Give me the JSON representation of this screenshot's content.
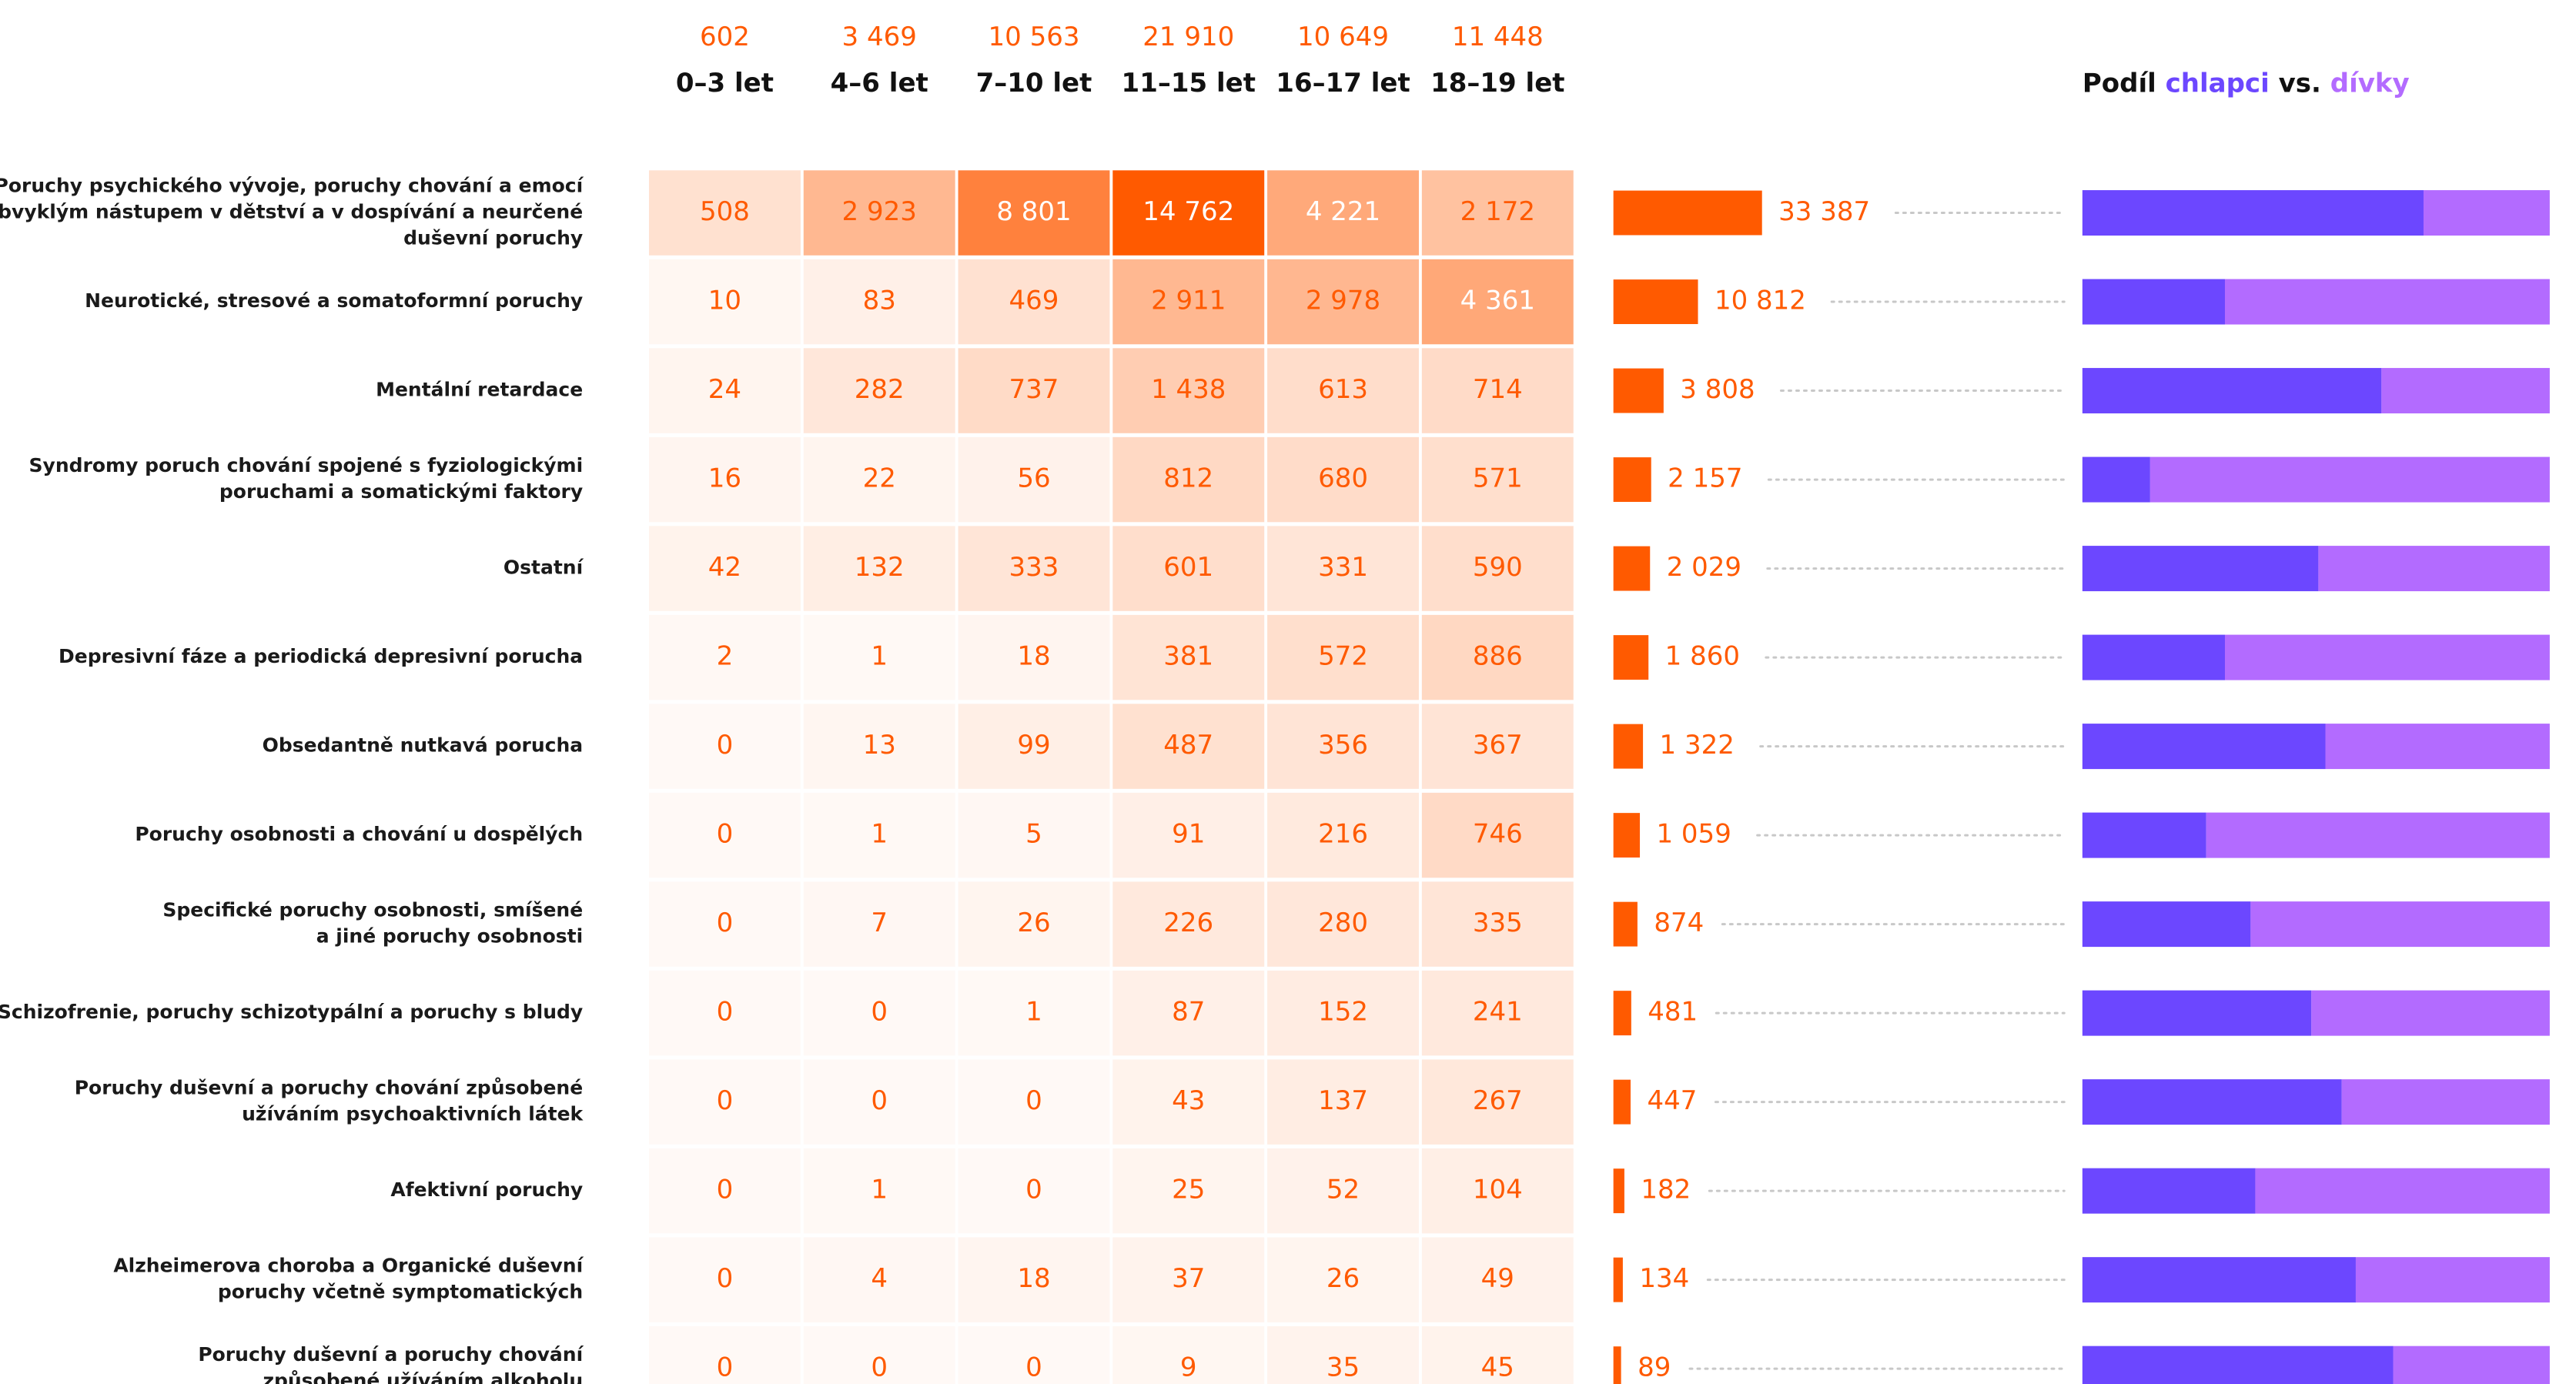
{
  "colors": {
    "accent": "#ff5a00",
    "boys": "#6c47ff",
    "girls": "#b36bff",
    "dots": "#c8c8c8",
    "label_text": "#1a1a1a",
    "header_text": "#111111"
  },
  "share_title": {
    "prefix": "Podíl",
    "boys": "chlapci",
    "vs": "vs.",
    "girls": "dívky"
  },
  "chart_data": {
    "type": "heatmap",
    "columns": [
      {
        "label": "0–3 let",
        "total": "602"
      },
      {
        "label": "4–6 let",
        "total": "3 469"
      },
      {
        "label": "7–10 let",
        "total": "10 563"
      },
      {
        "label": "11–15 let",
        "total": "21 910"
      },
      {
        "label": "16–17 let",
        "total": "10 649"
      },
      {
        "label": "18–19 let",
        "total": "11 448"
      }
    ],
    "rows": [
      {
        "lines": [
          "Poruchy psychického vývoje, poruchy chování a emocí",
          "s obvyklým nástupem v dětství a v dospívání a neurčené",
          "duševní poruchy"
        ],
        "cells": [
          508,
          2923,
          8801,
          14762,
          4221,
          2172
        ],
        "cell_labels": [
          "508",
          "2 923",
          "8 801",
          "14 762",
          "4 221",
          "2 172"
        ],
        "total": 33387,
        "total_label": "33 387",
        "boys_share": 0.73
      },
      {
        "lines": [
          "Neurotické, stresové a somatoformní poruchy"
        ],
        "cells": [
          10,
          83,
          469,
          2911,
          2978,
          4361
        ],
        "cell_labels": [
          "10",
          "83",
          "469",
          "2 911",
          "2 978",
          "4 361"
        ],
        "total": 10812,
        "total_label": "10 812",
        "boys_share": 0.305
      },
      {
        "lines": [
          "Mentální retardace"
        ],
        "cells": [
          24,
          282,
          737,
          1438,
          613,
          714
        ],
        "cell_labels": [
          "24",
          "282",
          "737",
          "1 438",
          "613",
          "714"
        ],
        "total": 3808,
        "total_label": "3 808",
        "boys_share": 0.64
      },
      {
        "lines": [
          "Syndromy poruch chování spojené s fyziologickými",
          "poruchami a somatickými faktory"
        ],
        "cells": [
          16,
          22,
          56,
          812,
          680,
          571
        ],
        "cell_labels": [
          "16",
          "22",
          "56",
          "812",
          "680",
          "571"
        ],
        "total": 2157,
        "total_label": "2 157",
        "boys_share": 0.145
      },
      {
        "lines": [
          "Ostatní"
        ],
        "cells": [
          42,
          132,
          333,
          601,
          331,
          590
        ],
        "cell_labels": [
          "42",
          "132",
          "333",
          "601",
          "331",
          "590"
        ],
        "total": 2029,
        "total_label": "2 029",
        "boys_share": 0.505
      },
      {
        "lines": [
          "Depresivní fáze a periodická depresivní porucha"
        ],
        "cells": [
          2,
          1,
          18,
          381,
          572,
          886
        ],
        "cell_labels": [
          "2",
          "1",
          "18",
          "381",
          "572",
          "886"
        ],
        "total": 1860,
        "total_label": "1 860",
        "boys_share": 0.305
      },
      {
        "lines": [
          "Obsedantně nutkavá porucha"
        ],
        "cells": [
          0,
          13,
          99,
          487,
          356,
          367
        ],
        "cell_labels": [
          "0",
          "13",
          "99",
          "487",
          "356",
          "367"
        ],
        "total": 1322,
        "total_label": "1 322",
        "boys_share": 0.52
      },
      {
        "lines": [
          "Poruchy osobnosti a chování u dospělých"
        ],
        "cells": [
          0,
          1,
          5,
          91,
          216,
          746
        ],
        "cell_labels": [
          "0",
          "1",
          "5",
          "91",
          "216",
          "746"
        ],
        "total": 1059,
        "total_label": "1 059",
        "boys_share": 0.265
      },
      {
        "lines": [
          "Specifické poruchy osobnosti, smíšené",
          "a jiné poruchy osobnosti"
        ],
        "cells": [
          0,
          7,
          26,
          226,
          280,
          335
        ],
        "cell_labels": [
          "0",
          "7",
          "26",
          "226",
          "280",
          "335"
        ],
        "total": 874,
        "total_label": "874",
        "boys_share": 0.36
      },
      {
        "lines": [
          "Schizofrenie, poruchy schizotypální a poruchy s bludy"
        ],
        "cells": [
          0,
          0,
          1,
          87,
          152,
          241
        ],
        "cell_labels": [
          "0",
          "0",
          "1",
          "87",
          "152",
          "241"
        ],
        "total": 481,
        "total_label": "481",
        "boys_share": 0.49
      },
      {
        "lines": [
          "Poruchy duševní a poruchy chování způsobené",
          "užíváním psychoaktivních látek"
        ],
        "cells": [
          0,
          0,
          0,
          43,
          137,
          267
        ],
        "cell_labels": [
          "0",
          "0",
          "0",
          "43",
          "137",
          "267"
        ],
        "total": 447,
        "total_label": "447",
        "boys_share": 0.555
      },
      {
        "lines": [
          "Afektivní poruchy"
        ],
        "cells": [
          0,
          1,
          0,
          25,
          52,
          104
        ],
        "cell_labels": [
          "0",
          "1",
          "0",
          "25",
          "52",
          "104"
        ],
        "total": 182,
        "total_label": "182",
        "boys_share": 0.37
      },
      {
        "lines": [
          "Alzheimerova choroba a Organické duševní",
          "poruchy včetně symptomatických"
        ],
        "cells": [
          0,
          4,
          18,
          37,
          26,
          49
        ],
        "cell_labels": [
          "0",
          "4",
          "18",
          "37",
          "26",
          "49"
        ],
        "total": 134,
        "total_label": "134",
        "boys_share": 0.585
      },
      {
        "lines": [
          "Poruchy duševní a poruchy chování",
          "způsobené užíváním alkoholu"
        ],
        "cells": [
          0,
          0,
          0,
          9,
          35,
          45
        ],
        "cell_labels": [
          "0",
          "0",
          "0",
          "9",
          "35",
          "45"
        ],
        "total": 89,
        "total_label": "89",
        "boys_share": 0.665
      }
    ]
  }
}
